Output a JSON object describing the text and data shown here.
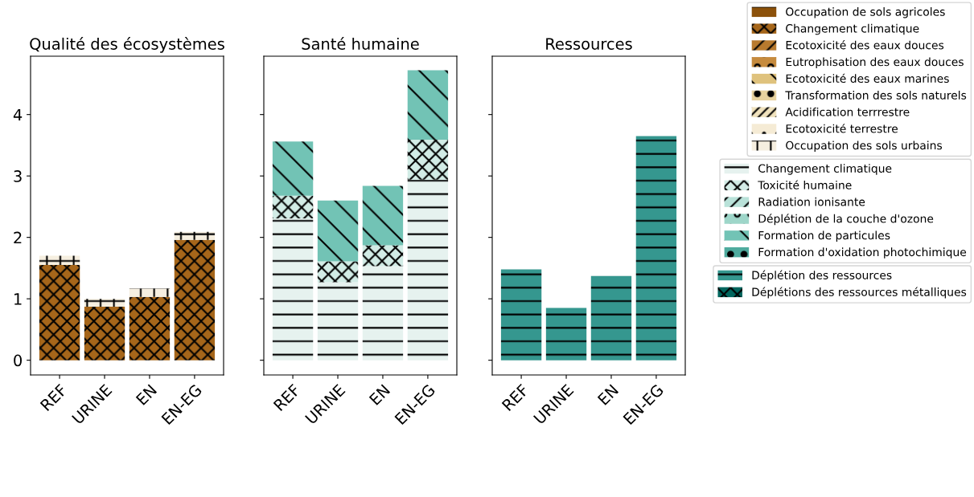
{
  "chart_data": [
    {
      "type": "bar",
      "title": "Qualité des écosystèmes",
      "stacked": true,
      "categories": [
        "REF",
        "URINE",
        "EN",
        "EN-EG"
      ],
      "ylim": [
        -0.24,
        4.95
      ],
      "yticks": [
        0,
        1,
        2,
        3,
        4
      ],
      "grid": false,
      "legend": "right",
      "series": [
        {
          "name": "Occupation de sols agricoles",
          "color": "#8c510a",
          "values": [
            0,
            0,
            0,
            0
          ]
        },
        {
          "name": "Changement climatique",
          "color": "#a6661a",
          "values": [
            1.55,
            0.87,
            1.03,
            1.96
          ]
        },
        {
          "name": "Ecotoxicité des eaux douces",
          "color": "#b87a2e",
          "values": [
            0,
            0,
            0,
            0
          ]
        },
        {
          "name": "Eutrophisation des eaux douces",
          "color": "#c68b3e",
          "values": [
            0,
            0,
            0,
            0
          ]
        },
        {
          "name": "Ecotoxicité des eaux marines",
          "color": "#dfc27d",
          "values": [
            0,
            0,
            0,
            0
          ]
        },
        {
          "name": "Transformation des sols naturels",
          "color": "#e8d39f",
          "values": [
            0,
            0,
            0,
            0
          ]
        },
        {
          "name": "Acidification terrrestre",
          "color": "#f0e2bd",
          "values": [
            0,
            0,
            0,
            0
          ]
        },
        {
          "name": "Ecotoxicité terrestre",
          "color": "#f5ebd5",
          "values": [
            0,
            0,
            0,
            0
          ]
        },
        {
          "name": "Occupation des sols urbains",
          "color": "#f6efe0",
          "values": [
            0.15,
            0.13,
            0.14,
            0.13
          ]
        }
      ]
    },
    {
      "type": "bar",
      "title": "Santé humaine",
      "stacked": true,
      "categories": [
        "REF",
        "URINE",
        "EN",
        "EN-EG"
      ],
      "ylim": [
        -0.24,
        4.95
      ],
      "yticks": [
        0,
        1,
        2,
        3,
        4
      ],
      "tick_labels": "x",
      "grid": false,
      "legend": "right",
      "series": [
        {
          "name": "Changement climatique",
          "color": "#e6f2ef",
          "values": [
            2.31,
            1.27,
            1.53,
            2.94
          ]
        },
        {
          "name": "Toxicité humaine",
          "color": "#d2ece6",
          "values": [
            0.37,
            0.34,
            0.34,
            0.65
          ]
        },
        {
          "name": "Radiation ionisante",
          "color": "#b9e2d9",
          "values": [
            0,
            0,
            0,
            0
          ]
        },
        {
          "name": "Déplétion de la couche d'ozone",
          "color": "#9ed6c9",
          "values": [
            0,
            0,
            0,
            0
          ]
        },
        {
          "name": "Formation de particules",
          "color": "#72c3b5",
          "values": [
            0.88,
            0.99,
            0.97,
            1.13
          ]
        },
        {
          "name": "Formation d'oxidation photochimique",
          "color": "#4fab9e",
          "values": [
            0,
            0,
            0,
            0
          ]
        }
      ]
    },
    {
      "type": "bar",
      "title": "Ressources",
      "stacked": true,
      "categories": [
        "REF",
        "URINE",
        "EN",
        "EN-EG"
      ],
      "ylim": [
        -0.24,
        4.95
      ],
      "yticks": [
        0,
        1,
        2,
        3,
        4
      ],
      "tick_labels": "x",
      "grid": false,
      "legend": "right",
      "series": [
        {
          "name": "Déplétion des ressources",
          "color": "#35978f",
          "values": [
            1.48,
            0.85,
            1.37,
            3.65
          ]
        },
        {
          "name": "Déplétions des ressources métalliques",
          "color": "#01665e",
          "values": [
            0,
            0,
            0,
            0
          ]
        }
      ]
    }
  ]
}
